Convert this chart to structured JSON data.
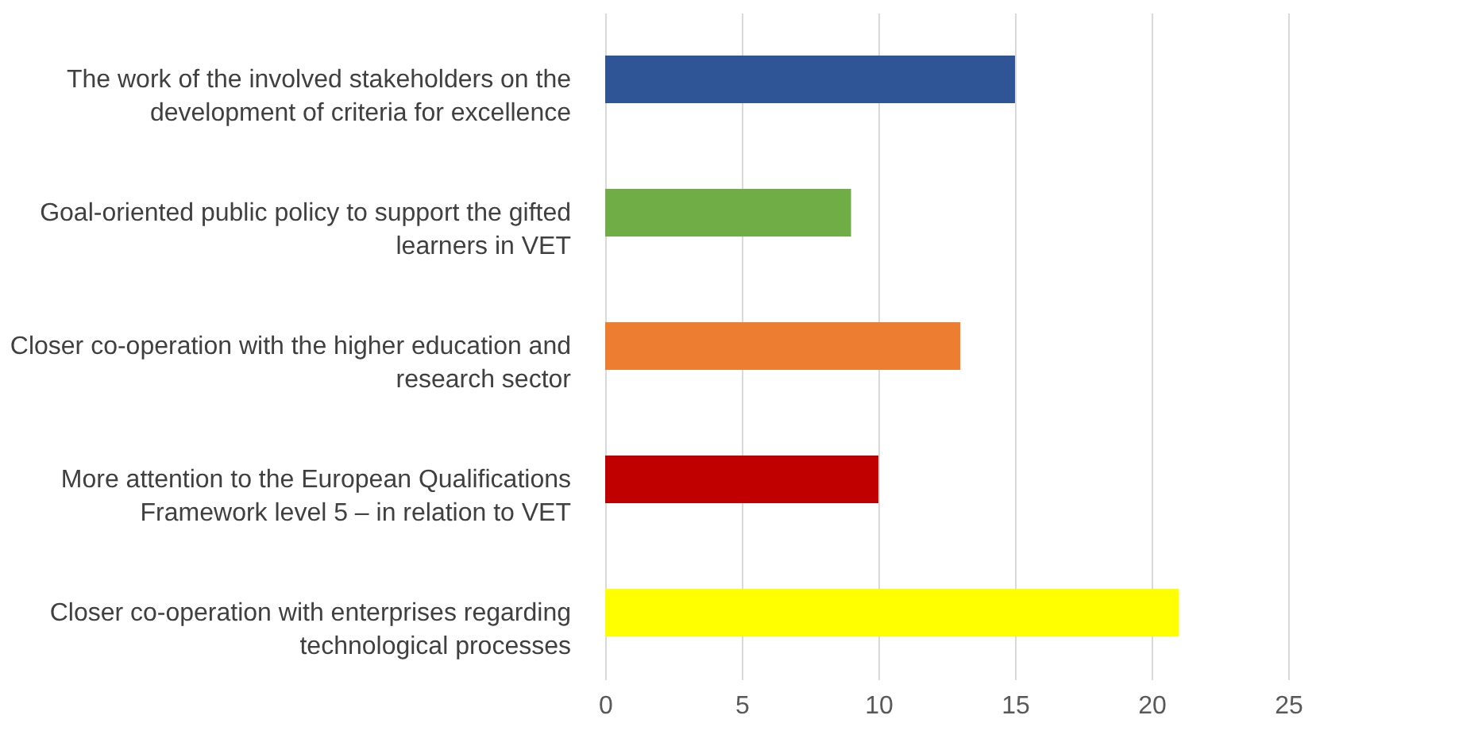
{
  "chart_data": {
    "type": "bar",
    "orientation": "horizontal",
    "categories": [
      "The work of the involved stakeholders on the development of criteria for excellence",
      "Goal-oriented public policy to support the gifted learners in VET",
      "Closer co-operation with the higher education and research sector",
      "More attention to the European Qualifications Framework level 5 – in relation to VET",
      "Closer co-operation with enterprises regarding technological processes"
    ],
    "values": [
      15,
      9,
      13,
      10,
      21
    ],
    "colors": [
      "#2f5597",
      "#70ad47",
      "#ed7d31",
      "#c00000",
      "#ffff00"
    ],
    "xlim": [
      0,
      25
    ],
    "xticks": [
      0,
      5,
      10,
      15,
      20,
      25
    ],
    "grid": "x"
  }
}
